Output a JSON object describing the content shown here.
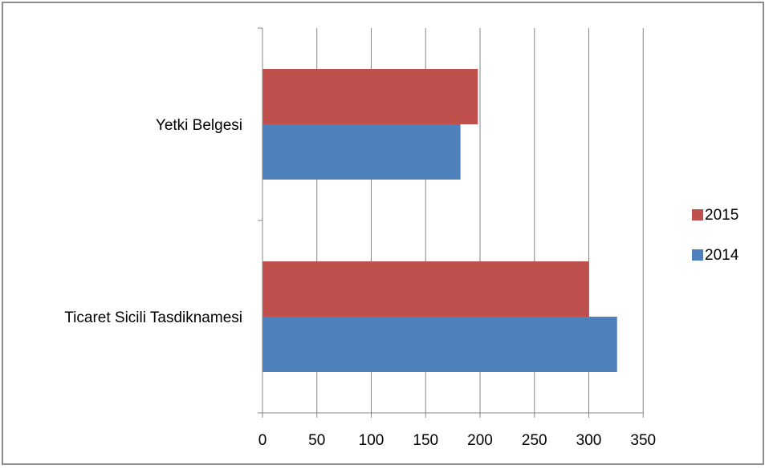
{
  "chart_data": {
    "type": "bar",
    "orientation": "horizontal",
    "categories": [
      "Yetki Belgesi",
      "Ticaret Sicili Tasdiknamesi"
    ],
    "series": [
      {
        "name": "2015",
        "color": "#c0504d",
        "values": [
          198,
          300
        ]
      },
      {
        "name": "2014",
        "color": "#4f81bd",
        "values": [
          182,
          326
        ]
      }
    ],
    "xlim": [
      0,
      350
    ],
    "xticks": [
      "0",
      "50",
      "100",
      "150",
      "200",
      "250",
      "300",
      "350"
    ],
    "grid": true,
    "legend_position": "right"
  }
}
